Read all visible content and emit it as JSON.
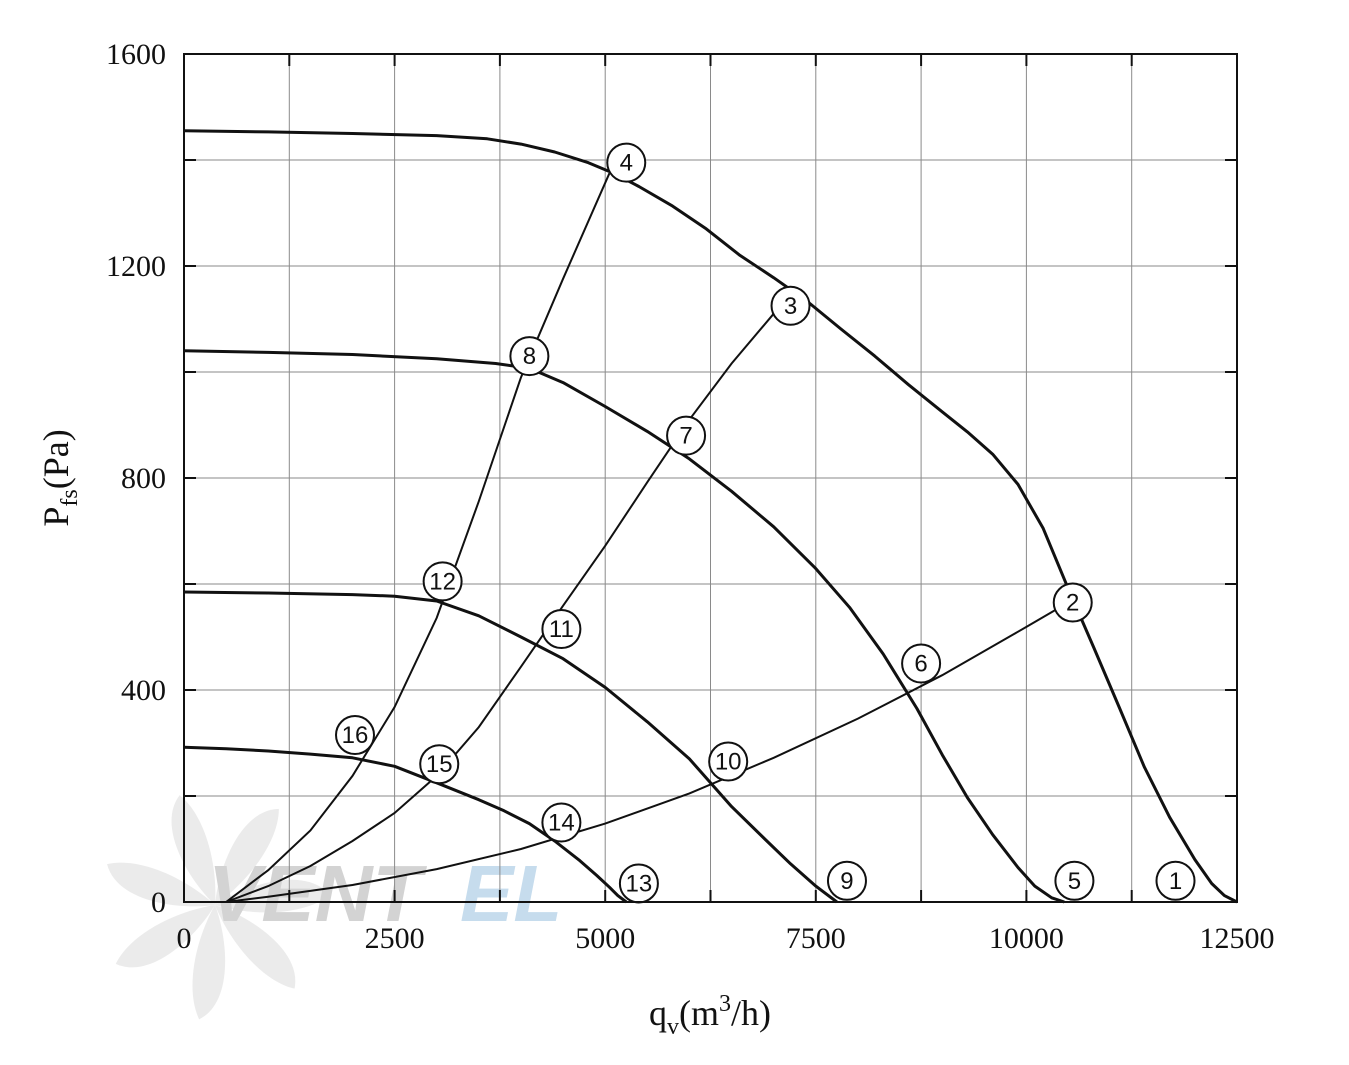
{
  "chart_data": {
    "type": "line",
    "title": "",
    "xlabel": "q",
    "xlabel_sub": "v",
    "xlabel_paren": "(m",
    "xlabel_sup": "3",
    "xlabel_tail": "/h)",
    "ylabel": "P",
    "ylabel_sub": "fs",
    "ylabel_tail": "(Pa)",
    "xlim": [
      0,
      12500
    ],
    "ylim": [
      0,
      1600
    ],
    "x_ticks": [
      0,
      2500,
      5000,
      7500,
      10000,
      12500
    ],
    "y_ticks": [
      0,
      400,
      800,
      1200,
      1600
    ],
    "x_tick_labels": [
      "0",
      "2500",
      "5000",
      "7500",
      "10000",
      "12500"
    ],
    "y_tick_labels": [
      "0",
      "400",
      "800",
      "1200",
      "1600"
    ],
    "x_grid_step": 1250,
    "y_grid_step": 200,
    "grid": true,
    "legend": "none",
    "watermark": {
      "text_left": "VENT",
      "text_right": "EL",
      "color_left": "#c9c9c9",
      "color_right": "#bcd7ea"
    },
    "series": [
      {
        "kind": "fan",
        "x": [
          0,
          1000,
          2000,
          3000,
          3600,
          4000,
          4400,
          4800,
          5100,
          5400,
          5800,
          6200,
          6600,
          7000,
          7400,
          7800,
          8200,
          8600,
          9000,
          9300,
          9600,
          9900,
          10200,
          10500,
          10800,
          11100,
          11400,
          11700,
          12000,
          12200,
          12350,
          12500
        ],
        "y": [
          1455,
          1453,
          1450,
          1446,
          1440,
          1430,
          1415,
          1395,
          1375,
          1350,
          1313,
          1270,
          1220,
          1178,
          1133,
          1081,
          1030,
          976,
          925,
          887,
          845,
          788,
          705,
          590,
          480,
          368,
          255,
          160,
          80,
          35,
          12,
          0
        ]
      },
      {
        "kind": "fan",
        "x": [
          0,
          1000,
          2000,
          3000,
          3700,
          4100,
          4500,
          5000,
          5500,
          6000,
          6500,
          7000,
          7500,
          7900,
          8300,
          8700,
          9000,
          9300,
          9600,
          9900,
          10100,
          10300,
          10450
        ],
        "y": [
          1040,
          1037,
          1033,
          1025,
          1016,
          1007,
          980,
          935,
          888,
          836,
          775,
          708,
          629,
          556,
          468,
          365,
          278,
          197,
          127,
          65,
          30,
          8,
          0
        ]
      },
      {
        "kind": "fan",
        "x": [
          0,
          1000,
          2000,
          2500,
          3000,
          3500,
          4000,
          4500,
          5000,
          5500,
          6000,
          6500,
          6900,
          7200,
          7500,
          7750
        ],
        "y": [
          585,
          583,
          580,
          577,
          568,
          540,
          500,
          459,
          405,
          340,
          270,
          180,
          118,
          72,
          30,
          0
        ]
      },
      {
        "kind": "fan",
        "x": [
          0,
          500,
          1000,
          1500,
          2000,
          2500,
          3000,
          3500,
          3800,
          4100,
          4400,
          4700,
          4900,
          5050,
          5150,
          5250
        ],
        "y": [
          292,
          289,
          285,
          279,
          272,
          256,
          225,
          193,
          172,
          148,
          115,
          78,
          50,
          28,
          12,
          0
        ]
      },
      {
        "kind": "system",
        "x": [
          500,
          1000,
          2000,
          3000,
          4000,
          5000,
          6000,
          7000,
          8000,
          9000,
          10000,
          10400
        ],
        "y": [
          0,
          10,
          32,
          62,
          100,
          148,
          205,
          272,
          346,
          428,
          519,
          556
        ]
      },
      {
        "kind": "system",
        "x": [
          500,
          1000,
          1500,
          2000,
          2500,
          3000,
          3500,
          4000,
          4500,
          5000,
          5500,
          6000,
          6500,
          7000
        ],
        "y": [
          0,
          30,
          68,
          115,
          168,
          238,
          330,
          444,
          559,
          672,
          792,
          910,
          1016,
          1110
        ]
      },
      {
        "kind": "system",
        "x": [
          500,
          1000,
          1500,
          2000,
          2500,
          3000,
          3500,
          4000,
          4500,
          5050
        ],
        "y": [
          0,
          60,
          135,
          238,
          368,
          536,
          756,
          990,
          1176,
          1375
        ]
      }
    ],
    "markers": [
      {
        "label": "1",
        "x": 11770,
        "y": 40
      },
      {
        "label": "2",
        "x": 10550,
        "y": 565
      },
      {
        "label": "3",
        "x": 7200,
        "y": 1125
      },
      {
        "label": "4",
        "x": 5250,
        "y": 1395
      },
      {
        "label": "5",
        "x": 10570,
        "y": 40
      },
      {
        "label": "6",
        "x": 8750,
        "y": 450
      },
      {
        "label": "7",
        "x": 5960,
        "y": 880
      },
      {
        "label": "8",
        "x": 4100,
        "y": 1030
      },
      {
        "label": "9",
        "x": 7870,
        "y": 40
      },
      {
        "label": "10",
        "x": 6460,
        "y": 265
      },
      {
        "label": "11",
        "x": 4480,
        "y": 515
      },
      {
        "label": "12",
        "x": 3070,
        "y": 605
      },
      {
        "label": "13",
        "x": 5400,
        "y": 35
      },
      {
        "label": "14",
        "x": 4480,
        "y": 150
      },
      {
        "label": "15",
        "x": 3030,
        "y": 260
      },
      {
        "label": "16",
        "x": 2030,
        "y": 315
      }
    ]
  }
}
